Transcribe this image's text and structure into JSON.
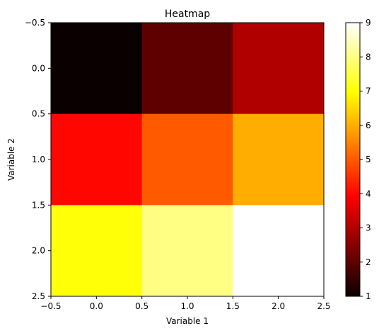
{
  "chart_data": {
    "type": "heatmap",
    "title": "Heatmap",
    "xlabel": "Variable 1",
    "ylabel": "Variable 2",
    "x_ticks": [
      "−0.5",
      "0.0",
      "0.5",
      "1.0",
      "1.5",
      "2.0",
      "2.5"
    ],
    "y_ticks": [
      "−0.5",
      "0.0",
      "0.5",
      "1.0",
      "1.5",
      "2.0",
      "2.5"
    ],
    "xlim": [
      -0.5,
      2.5
    ],
    "ylim": [
      2.5,
      -0.5
    ],
    "matrix": [
      [
        1,
        2,
        3
      ],
      [
        4,
        5,
        6
      ],
      [
        7,
        8,
        9
      ]
    ],
    "colormap": "hot",
    "colorbar": {
      "min": 1,
      "max": 9,
      "ticks": [
        "1",
        "2",
        "3",
        "4",
        "5",
        "6",
        "7",
        "8",
        "9"
      ]
    },
    "cell_colors": [
      [
        "#0b0000",
        "#5e0000",
        "#b00000"
      ],
      [
        "#ff0700",
        "#ff5a00",
        "#ffae00"
      ],
      [
        "#ffff08",
        "#ffff84",
        "#ffffff"
      ]
    ],
    "grid": false,
    "legend": "none"
  }
}
